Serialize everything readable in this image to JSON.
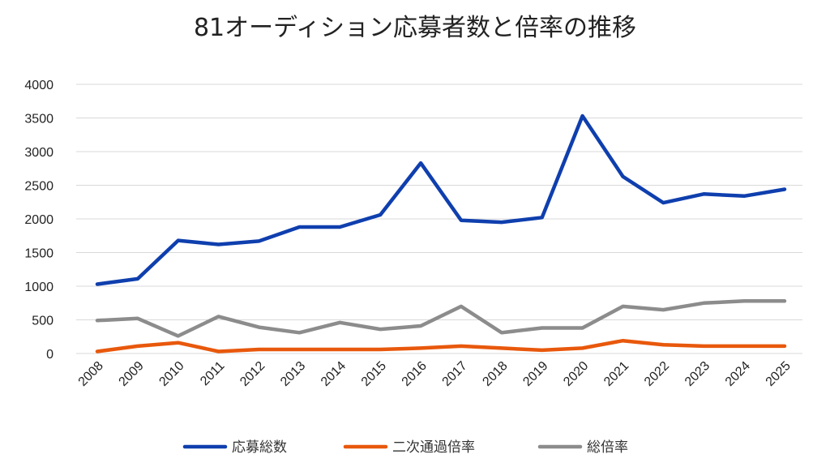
{
  "chart_data": {
    "type": "line",
    "title": "81オーディション応募者数と倍率の推移",
    "categories": [
      "2008",
      "2009",
      "2010",
      "2011",
      "2012",
      "2013",
      "2014",
      "2015",
      "2016",
      "2017",
      "2018",
      "2019",
      "2020",
      "2021",
      "2022",
      "2023",
      "2024",
      "2025"
    ],
    "ylim": [
      0,
      4000
    ],
    "yticks": [
      0,
      500,
      1000,
      1500,
      2000,
      2500,
      3000,
      3500,
      4000
    ],
    "grid": true,
    "legend_position": "bottom",
    "series": [
      {
        "name": "応募総数",
        "color": "#0f3fae",
        "values": [
          1030,
          1110,
          1680,
          1620,
          1670,
          1880,
          1880,
          2060,
          2830,
          1980,
          1950,
          2020,
          3530,
          2630,
          2240,
          2370,
          2340,
          2440
        ]
      },
      {
        "name": "二次通過倍率",
        "color": "#e8580c",
        "values": [
          30,
          110,
          160,
          30,
          60,
          60,
          60,
          60,
          80,
          110,
          80,
          50,
          80,
          190,
          130,
          110,
          110,
          110
        ]
      },
      {
        "name": "総倍率",
        "color": "#8c8c8c",
        "values": [
          490,
          520,
          260,
          550,
          390,
          310,
          460,
          360,
          410,
          700,
          310,
          380,
          380,
          700,
          650,
          750,
          780,
          780
        ]
      }
    ]
  }
}
